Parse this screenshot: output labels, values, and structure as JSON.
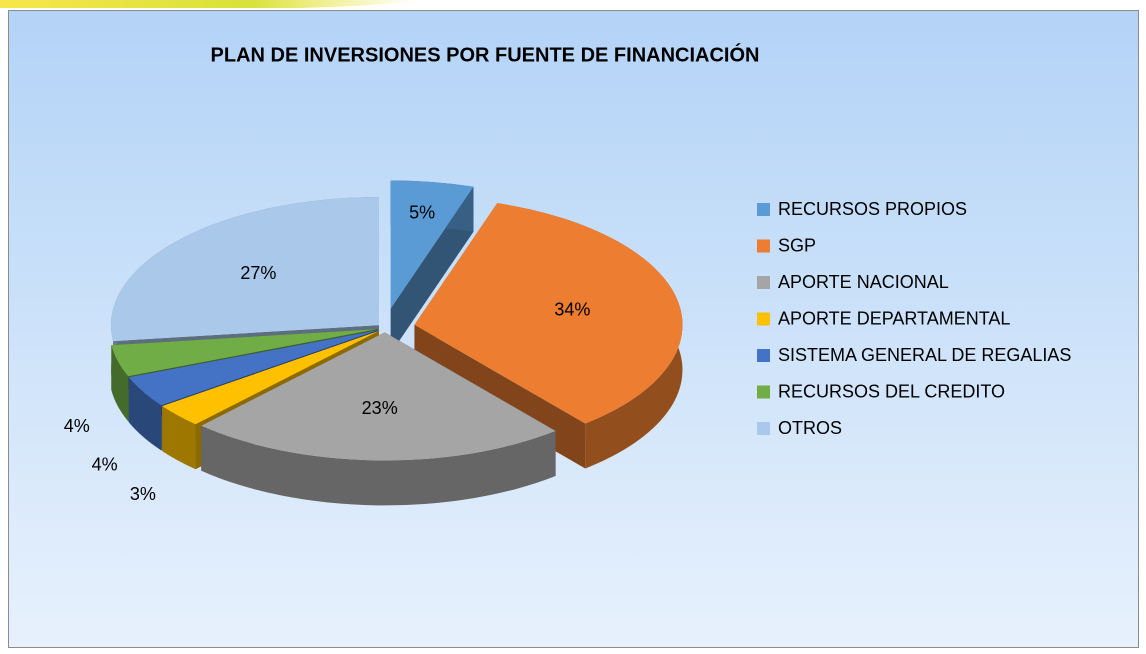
{
  "chart_data": {
    "type": "pie3d",
    "title": "PLAN DE INVERSIONES POR FUENTE DE FINANCIACIÓN",
    "categories": [
      "RECURSOS PROPIOS",
      "SGP",
      "APORTE NACIONAL",
      "APORTE DEPARTAMENTAL",
      "SISTEMA GENERAL DE REGALIAS",
      "RECURSOS DEL CREDITO",
      " OTROS"
    ],
    "values": [
      5,
      34,
      23,
      3,
      4,
      4,
      27
    ],
    "value_labels": [
      "5%",
      "34%",
      "23%",
      "3%",
      "4%",
      "4%",
      "27%"
    ],
    "colors": [
      "#5b9bd5",
      "#ed7d31",
      "#a5a5a5",
      "#ffc000",
      "#4472c4",
      "#70ad47",
      "#a9c8ea"
    ],
    "legend": "right"
  }
}
